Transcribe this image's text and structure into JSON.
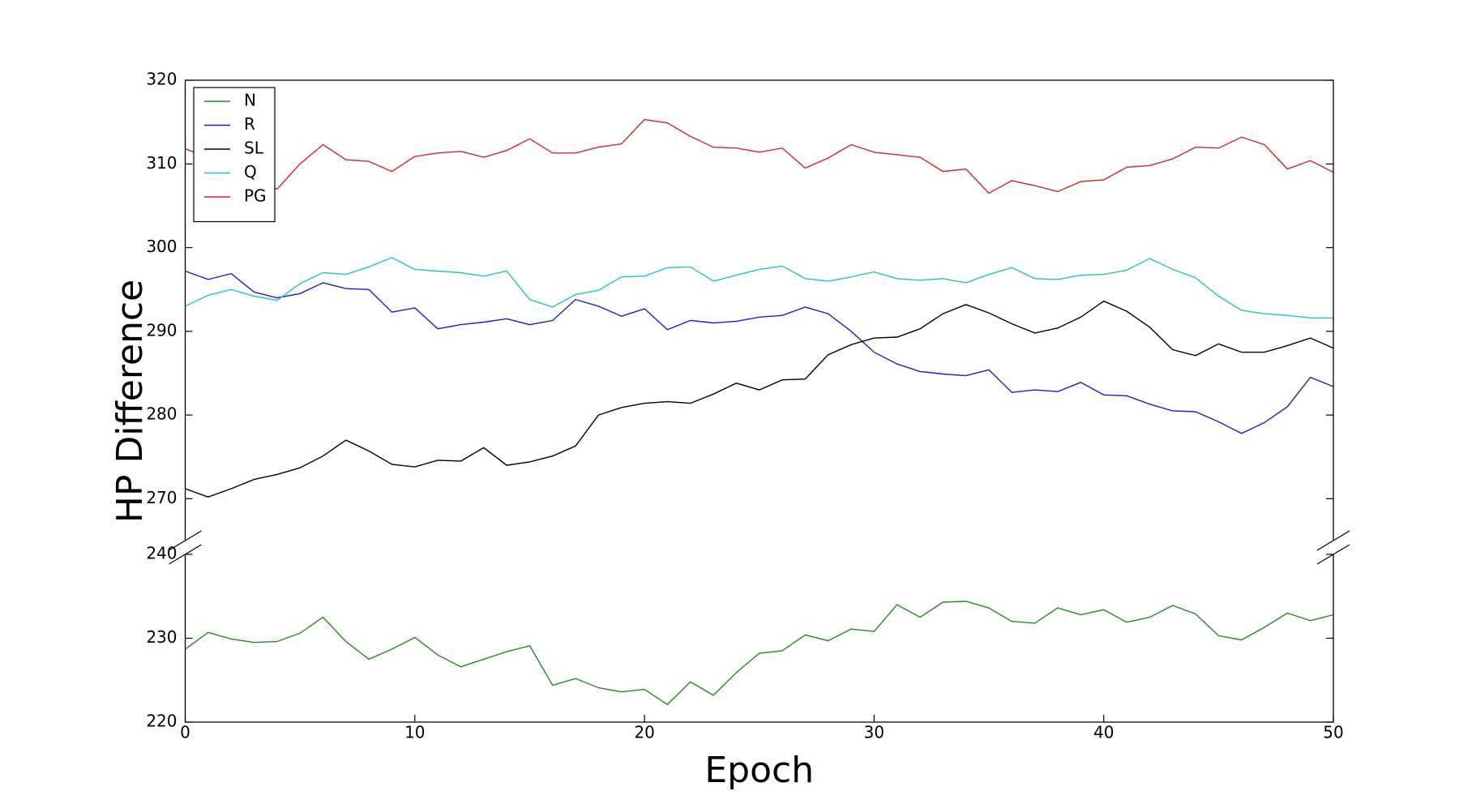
{
  "chart_data": [
    {
      "type": "line",
      "ylabel": "HP Difference",
      "xlim": [
        0,
        50
      ],
      "ylim": [
        265,
        320
      ],
      "yticks": [
        270,
        280,
        290,
        300,
        310,
        320
      ],
      "legend": "upper left",
      "x": [
        0,
        1,
        2,
        3,
        4,
        5,
        6,
        7,
        8,
        9,
        10,
        11,
        12,
        13,
        14,
        15,
        16,
        17,
        18,
        19,
        20,
        21,
        22,
        23,
        24,
        25,
        26,
        27,
        28,
        29,
        30,
        31,
        32,
        33,
        34,
        35,
        36,
        37,
        38,
        39,
        40,
        41,
        42,
        43,
        44,
        45,
        46,
        47,
        48,
        49,
        50
      ],
      "series": [
        {
          "name": "R",
          "color": "#1f1fcc",
          "values": [
            297.2,
            296.2,
            296.9,
            294.7,
            294.0,
            294.5,
            295.8,
            295.1,
            295.0,
            292.3,
            292.8,
            290.3,
            290.8,
            291.1,
            291.5,
            290.8,
            291.3,
            293.8,
            293.0,
            291.8,
            292.7,
            290.2,
            291.3,
            291.0,
            291.2,
            291.7,
            291.9,
            292.9,
            292.1,
            290.0,
            287.5,
            286.1,
            285.2,
            284.9,
            284.7,
            285.4,
            282.7,
            283.0,
            282.8,
            283.9,
            282.4,
            282.3,
            281.3,
            280.5,
            280.4,
            279.2,
            277.8,
            279.1,
            281.0,
            284.5,
            283.4
          ]
        },
        {
          "name": "SL",
          "color": "#000000",
          "values": [
            271.2,
            270.2,
            271.2,
            272.3,
            272.9,
            273.7,
            275.1,
            277.0,
            275.7,
            274.1,
            273.8,
            274.6,
            274.5,
            276.1,
            274.0,
            274.4,
            275.1,
            276.3,
            280.0,
            280.9,
            281.4,
            281.6,
            281.4,
            282.5,
            283.8,
            283.0,
            284.2,
            284.3,
            287.2,
            288.4,
            289.2,
            289.3,
            290.3,
            292.1,
            293.2,
            292.2,
            290.9,
            289.8,
            290.4,
            291.7,
            293.6,
            292.4,
            290.5,
            287.8,
            287.1,
            288.5,
            287.5,
            287.5,
            288.3,
            289.2,
            288.0
          ]
        },
        {
          "name": "Q",
          "color": "#22c4c4",
          "values": [
            293.0,
            294.3,
            295.0,
            294.2,
            293.7,
            295.7,
            297.0,
            296.8,
            297.7,
            298.8,
            297.4,
            297.2,
            297.0,
            296.6,
            297.2,
            293.8,
            292.9,
            294.4,
            294.9,
            296.5,
            296.6,
            297.6,
            297.7,
            296.0,
            296.7,
            297.4,
            297.8,
            296.3,
            296.0,
            296.5,
            297.1,
            296.3,
            296.1,
            296.3,
            295.8,
            296.8,
            297.6,
            296.3,
            296.2,
            296.7,
            296.8,
            297.3,
            298.7,
            297.4,
            296.4,
            294.2,
            292.5,
            292.1,
            291.9,
            291.6,
            291.6
          ]
        },
        {
          "name": "PG",
          "color": "#d62728",
          "values": [
            311.8,
            310.8,
            309.5,
            307.8,
            307.0,
            310.0,
            312.3,
            310.5,
            310.3,
            309.1,
            310.9,
            311.3,
            311.5,
            310.8,
            311.6,
            313.0,
            311.3,
            311.3,
            312.0,
            312.4,
            315.3,
            314.9,
            313.3,
            312.0,
            311.9,
            311.4,
            311.9,
            309.5,
            310.7,
            312.3,
            311.4,
            311.1,
            310.8,
            309.1,
            309.4,
            306.5,
            308.0,
            307.4,
            306.7,
            307.9,
            308.1,
            309.6,
            309.8,
            310.6,
            312.0,
            311.9,
            313.2,
            312.3,
            309.4,
            310.4,
            309.0
          ]
        }
      ]
    },
    {
      "type": "line",
      "xlabel": "Epoch",
      "xlim": [
        0,
        50
      ],
      "xticks": [
        0,
        10,
        20,
        30,
        40,
        50
      ],
      "ylim": [
        220,
        240
      ],
      "yticks": [
        220,
        230,
        240
      ],
      "x": [
        0,
        1,
        2,
        3,
        4,
        5,
        6,
        7,
        8,
        9,
        10,
        11,
        12,
        13,
        14,
        15,
        16,
        17,
        18,
        19,
        20,
        21,
        22,
        23,
        24,
        25,
        26,
        27,
        28,
        29,
        30,
        31,
        32,
        33,
        34,
        35,
        36,
        37,
        38,
        39,
        40,
        41,
        42,
        43,
        44,
        45,
        46,
        47,
        48,
        49,
        50
      ],
      "series": [
        {
          "name": "N",
          "color": "#228b22",
          "values": [
            228.7,
            230.7,
            229.9,
            229.5,
            229.6,
            230.6,
            232.5,
            229.6,
            227.5,
            228.7,
            230.1,
            228.0,
            226.6,
            227.5,
            228.4,
            229.1,
            224.4,
            225.2,
            224.1,
            223.6,
            223.9,
            222.1,
            224.8,
            223.2,
            225.9,
            228.2,
            228.5,
            230.4,
            229.7,
            231.1,
            230.8,
            234.0,
            232.5,
            234.3,
            234.4,
            233.6,
            232.0,
            231.8,
            233.6,
            232.8,
            233.4,
            231.9,
            232.5,
            233.9,
            232.9,
            230.3,
            229.8,
            231.3,
            233.0,
            232.1,
            232.8
          ]
        }
      ]
    }
  ]
}
